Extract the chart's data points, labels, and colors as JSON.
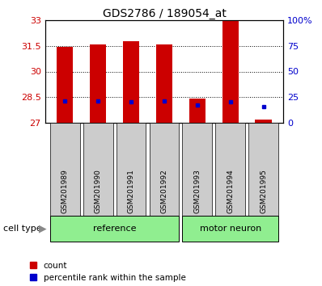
{
  "title": "GDS2786 / 189054_at",
  "samples": [
    "GSM201989",
    "GSM201990",
    "GSM201991",
    "GSM201992",
    "GSM201993",
    "GSM201994",
    "GSM201995"
  ],
  "cell_types": [
    "reference",
    "reference",
    "reference",
    "reference",
    "motor neuron",
    "motor neuron",
    "motor neuron"
  ],
  "red_values": [
    31.45,
    31.6,
    31.75,
    31.6,
    28.4,
    33.0,
    27.2
  ],
  "blue_values": [
    28.28,
    28.28,
    28.25,
    28.28,
    28.05,
    28.22,
    27.95
  ],
  "y_min": 27,
  "y_max": 33,
  "y_ticks": [
    27,
    28.5,
    30,
    31.5,
    33
  ],
  "y_labels": [
    "27",
    "28.5",
    "30",
    "31.5",
    "33"
  ],
  "right_y_ticks": [
    0,
    25,
    50,
    75,
    100
  ],
  "right_y_labels": [
    "0",
    "25",
    "50",
    "75",
    "100%"
  ],
  "left_color": "#cc0000",
  "right_color": "#0000cc",
  "bar_width": 0.5,
  "cell_type_bg_ref": "#90ee90",
  "cell_type_bg_motor": "#90ee90",
  "sample_box_bg": "#cccccc",
  "legend_red_label": "count",
  "legend_blue_label": "percentile rank within the sample"
}
